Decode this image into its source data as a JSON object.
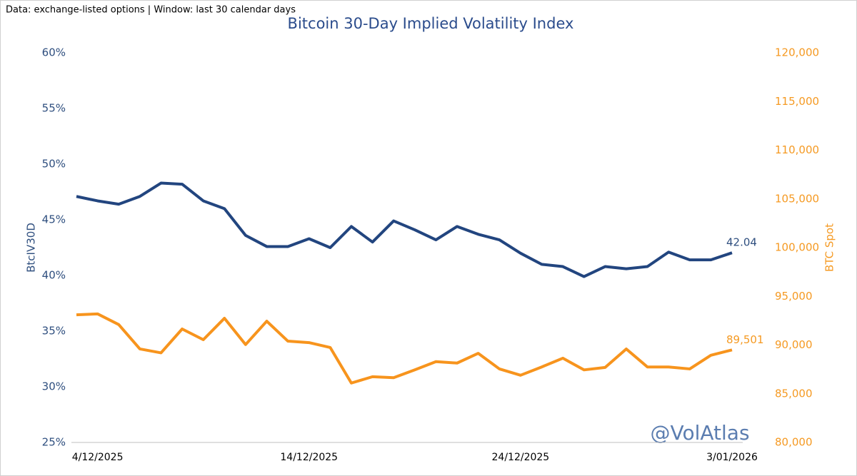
{
  "chart_data": {
    "type": "line",
    "title": "Bitcoin 30-Day Implied Volatility Index",
    "subtitle": "Data: exchange-listed options | Window: last 30 calendar days",
    "annotation": "@VolAtlas",
    "y_label": "BtcIV30D",
    "y2_label": "BTC Spot",
    "categories": [
      null,
      "4/12/2025",
      null,
      null,
      null,
      null,
      null,
      null,
      null,
      null,
      null,
      "14/12/2025",
      null,
      null,
      null,
      null,
      null,
      null,
      null,
      null,
      null,
      "24/12/2025",
      null,
      null,
      null,
      null,
      null,
      null,
      null,
      null,
      null,
      "3/01/2026"
    ],
    "ylim": [
      25,
      60
    ],
    "yticks": [
      {
        "value": 25,
        "label": "25%"
      },
      {
        "value": 30,
        "label": "30%"
      },
      {
        "value": 35,
        "label": "35%"
      },
      {
        "value": 40,
        "label": "40%"
      },
      {
        "value": 45,
        "label": "45%"
      },
      {
        "value": 50,
        "label": "50%"
      },
      {
        "value": 55,
        "label": "55%"
      },
      {
        "value": 60,
        "label": "60%"
      }
    ],
    "y2lim": [
      80000,
      120000
    ],
    "y2ticks": [
      {
        "value": 80000,
        "label": "80,000"
      },
      {
        "value": 85000,
        "label": "85,000"
      },
      {
        "value": 90000,
        "label": "90,000"
      },
      {
        "value": 95000,
        "label": "95,000"
      },
      {
        "value": 100000,
        "label": "100,000"
      },
      {
        "value": 105000,
        "label": "105,000"
      },
      {
        "value": 110000,
        "label": "110,000"
      },
      {
        "value": 115000,
        "label": "115,000"
      },
      {
        "value": 120000,
        "label": "120,000"
      }
    ],
    "series": [
      {
        "name": "BtcIV30D",
        "color": "#22457f",
        "values": [
          47.1,
          46.7,
          46.4,
          47.1,
          48.3,
          48.2,
          46.7,
          46.0,
          43.6,
          42.6,
          42.6,
          43.3,
          42.5,
          44.4,
          43.0,
          44.9,
          44.1,
          43.2,
          44.4,
          43.7,
          43.2,
          42.0,
          41.0,
          40.8,
          39.9,
          40.8,
          40.6,
          40.8,
          42.1,
          41.4,
          41.4,
          42.04
        ],
        "value_labels": [
          null,
          null,
          null,
          null,
          null,
          null,
          null,
          null,
          null,
          null,
          null,
          null,
          null,
          null,
          null,
          null,
          null,
          null,
          null,
          null,
          null,
          null,
          null,
          null,
          null,
          null,
          null,
          null,
          null,
          null,
          null,
          "42.04"
        ]
      },
      {
        "name": "BTC Spot",
        "color": "#f7941d",
        "axis": "y2",
        "values": [
          93100,
          93200,
          92100,
          89600,
          89200,
          91650,
          90550,
          92750,
          90050,
          92450,
          90400,
          90250,
          89750,
          86100,
          86750,
          86650,
          87450,
          88300,
          88150,
          89150,
          87550,
          86900,
          87750,
          88650,
          87450,
          87700,
          89600,
          87750,
          87750,
          87550,
          88950,
          89501
        ],
        "value_labels": [
          null,
          null,
          null,
          null,
          null,
          null,
          null,
          null,
          null,
          null,
          null,
          null,
          null,
          null,
          null,
          null,
          null,
          null,
          null,
          null,
          null,
          null,
          null,
          null,
          null,
          null,
          null,
          null,
          null,
          null,
          null,
          "89,501"
        ]
      }
    ]
  }
}
